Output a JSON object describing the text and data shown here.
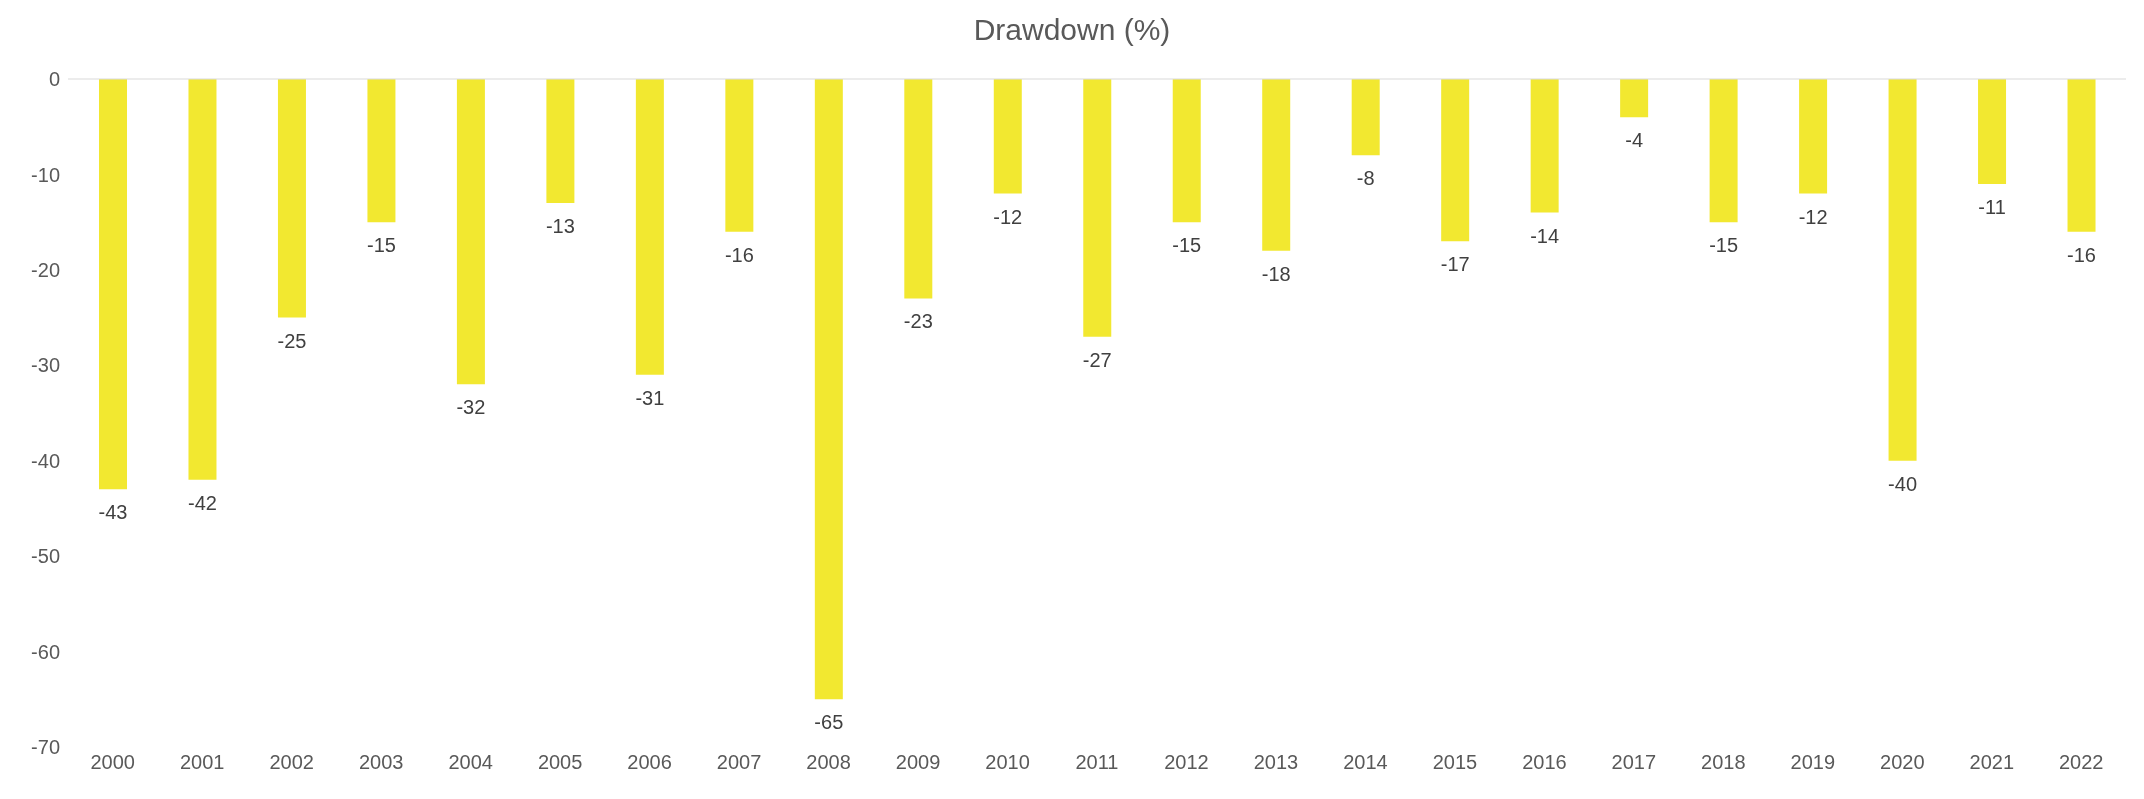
{
  "chart_data": {
    "type": "bar",
    "title": "Drawdown (%)",
    "categories": [
      "2000",
      "2001",
      "2002",
      "2003",
      "2004",
      "2005",
      "2006",
      "2007",
      "2008",
      "2009",
      "2010",
      "2011",
      "2012",
      "2013",
      "2014",
      "2015",
      "2016",
      "2017",
      "2018",
      "2019",
      "2020",
      "2021",
      "2022"
    ],
    "values": [
      -43,
      -42,
      -25,
      -15,
      -32,
      -13,
      -31,
      -16,
      -65,
      -23,
      -12,
      -27,
      -15,
      -18,
      -8,
      -17,
      -14,
      -4,
      -15,
      -12,
      -40,
      -11,
      -16
    ],
    "color": "#f2e830",
    "ylim": [
      -70,
      0
    ],
    "yticks": [
      0,
      -10,
      -20,
      -30,
      -40,
      -50,
      -60,
      -70
    ],
    "data_labels": true,
    "grid": false
  }
}
